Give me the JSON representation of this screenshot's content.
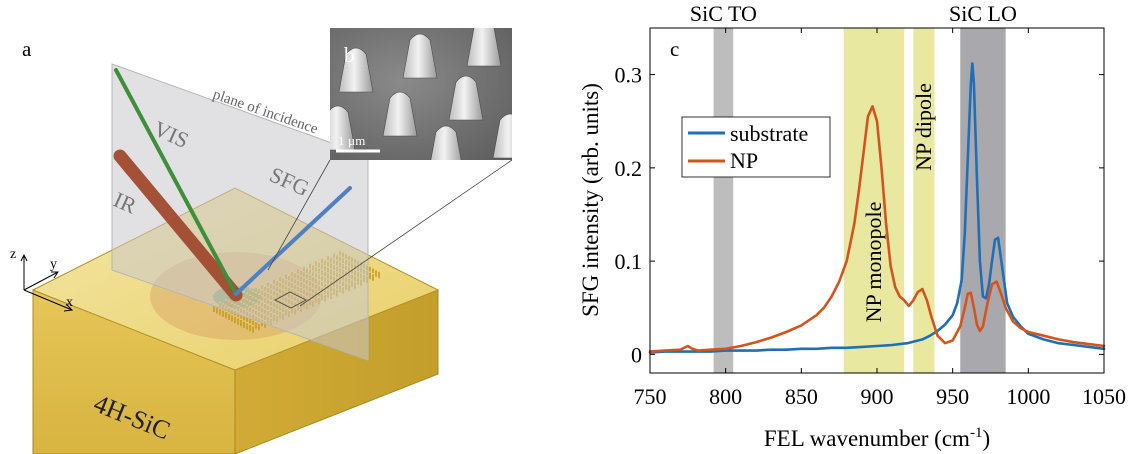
{
  "left_panel": {
    "panel_label": "a",
    "inset_label": "b",
    "scale_bar": "1 µm",
    "plane_label": "plane of incidence",
    "beams": [
      {
        "label": "VIS",
        "color": "#3e8e3a"
      },
      {
        "label": "IR",
        "color": "#a24a2f"
      },
      {
        "label": "SFG",
        "color": "#4f7fc4"
      }
    ],
    "axes": {
      "z": "z",
      "y": "y",
      "x": "x"
    },
    "substrate_label": "4H-SiC"
  },
  "chart_data": {
    "type": "line",
    "panel_label": "c",
    "title": "",
    "xlabel": "FEL wavenumber (cm",
    "xlabel_sup": "-1",
    "xlabel_tail": ")",
    "ylabel": "SFG intensity (arb. units)",
    "xlim": [
      750,
      1050
    ],
    "ylim": [
      -0.02,
      0.35
    ],
    "xticks": [
      750,
      800,
      850,
      900,
      950,
      1000,
      1050
    ],
    "yticks": [
      0,
      0.1,
      0.2,
      0.3
    ],
    "grid": false,
    "legend_position": "upper-left",
    "bands": [
      {
        "x0": 792,
        "x1": 805,
        "color": "#bdbdbd",
        "label": "SiC TO",
        "label_position": "top-outside"
      },
      {
        "x0": 878,
        "x1": 918,
        "color": "#e8e8a0",
        "label": "NP monopole",
        "label_position": "inside-vertical"
      },
      {
        "x0": 924,
        "x1": 938,
        "color": "#e8e8a0",
        "label": "NP dipole",
        "label_position": "inside-vertical"
      },
      {
        "x0": 955,
        "x1": 985,
        "color": "#a9a9ad",
        "label": "SiC LO",
        "label_position": "top-outside"
      }
    ],
    "series": [
      {
        "name": "substrate",
        "color": "#1f6fb8",
        "x": [
          750,
          760,
          770,
          780,
          790,
          800,
          810,
          820,
          830,
          840,
          850,
          860,
          870,
          880,
          890,
          900,
          910,
          920,
          930,
          935,
          940,
          945,
          950,
          953,
          956,
          958,
          960,
          962,
          963,
          964,
          966,
          968,
          970,
          972,
          974,
          976,
          978,
          980,
          983,
          986,
          990,
          995,
          1000,
          1010,
          1020,
          1030,
          1040,
          1050
        ],
        "y": [
          0.002,
          0.003,
          0.003,
          0.003,
          0.003,
          0.004,
          0.004,
          0.004,
          0.005,
          0.005,
          0.006,
          0.006,
          0.007,
          0.007,
          0.008,
          0.009,
          0.01,
          0.012,
          0.016,
          0.02,
          0.025,
          0.032,
          0.042,
          0.055,
          0.08,
          0.13,
          0.21,
          0.29,
          0.312,
          0.29,
          0.19,
          0.1,
          0.062,
          0.06,
          0.075,
          0.1,
          0.123,
          0.125,
          0.09,
          0.055,
          0.04,
          0.03,
          0.022,
          0.016,
          0.012,
          0.01,
          0.008,
          0.006
        ]
      },
      {
        "name": "NP",
        "color": "#d4541e",
        "x": [
          750,
          760,
          770,
          775,
          778,
          782,
          790,
          800,
          810,
          820,
          830,
          840,
          850,
          860,
          865,
          870,
          875,
          880,
          885,
          888,
          891,
          894,
          897,
          900,
          903,
          906,
          909,
          912,
          915,
          918,
          921,
          924,
          927,
          930,
          933,
          936,
          940,
          945,
          950,
          955,
          958,
          960,
          962,
          964,
          966,
          968,
          970,
          973,
          976,
          979,
          982,
          985,
          990,
          995,
          1000,
          1010,
          1020,
          1030,
          1040,
          1050
        ],
        "y": [
          0.003,
          0.004,
          0.005,
          0.009,
          0.006,
          0.004,
          0.005,
          0.006,
          0.009,
          0.013,
          0.018,
          0.024,
          0.031,
          0.042,
          0.05,
          0.062,
          0.078,
          0.1,
          0.14,
          0.175,
          0.215,
          0.255,
          0.266,
          0.25,
          0.2,
          0.14,
          0.095,
          0.072,
          0.062,
          0.058,
          0.052,
          0.058,
          0.067,
          0.07,
          0.058,
          0.04,
          0.02,
          0.012,
          0.015,
          0.03,
          0.05,
          0.065,
          0.066,
          0.05,
          0.032,
          0.025,
          0.03,
          0.055,
          0.075,
          0.078,
          0.065,
          0.05,
          0.035,
          0.028,
          0.024,
          0.02,
          0.016,
          0.013,
          0.011,
          0.009
        ]
      }
    ]
  }
}
